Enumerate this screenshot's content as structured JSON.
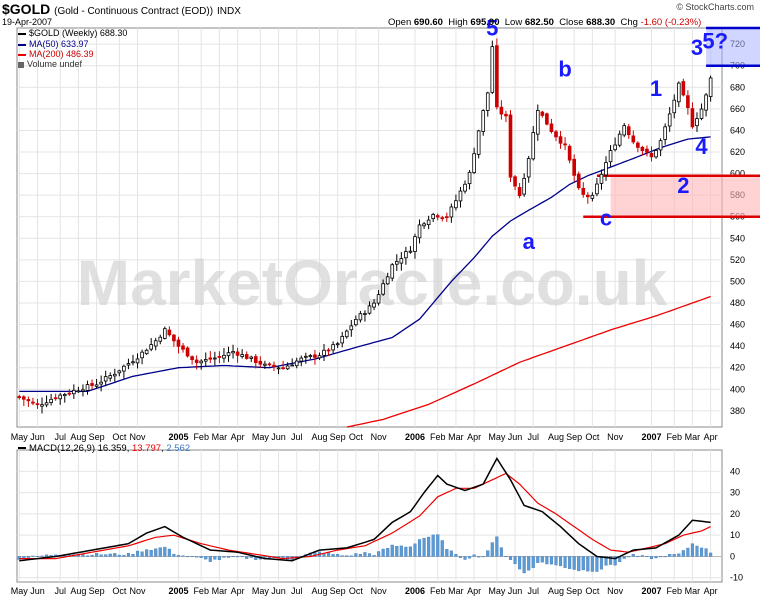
{
  "header": {
    "symbol": "$GOLD",
    "description": "(Gold - Continuous Contract (EOD))",
    "exchange": "INDX",
    "date": "19-Apr-2007",
    "open_label": "Open",
    "open": "690.60",
    "high_label": "High",
    "high": "695.90",
    "low_label": "Low",
    "low": "682.50",
    "close_label": "Close",
    "close": "688.30",
    "chg_label": "Chg",
    "chg": "-1.60 (-0.23%)",
    "credit": "© StockCharts.com"
  },
  "legend": {
    "price": "$GOLD (Weekly) 688.30",
    "ma50": "MA(50) 633.97",
    "ma200": "MA(200) 486.39",
    "volume": "Volume undef"
  },
  "macd_legend": {
    "name": "MACD(12,26,9)",
    "macd": "16.359",
    "signal": "13.797",
    "hist": "2.562"
  },
  "watermark": "MarketOracle.co.uk",
  "colors": {
    "up": "#000000",
    "down": "#cc0000",
    "ma50": "#00008b",
    "ma200": "#ee0000",
    "macd": "#000000",
    "signal": "#ee0000",
    "histogram": "#5b9bd5",
    "wave_labels": "#1a1aff",
    "support_zone": "#ffb6b6",
    "target_zone": "#aab4ff"
  },
  "chart_data": [
    {
      "type": "candlestick",
      "title": "$GOLD (Weekly)",
      "timeframe": "weekly",
      "ylim": [
        365,
        735
      ],
      "y_ticks": [
        380,
        400,
        420,
        440,
        460,
        480,
        500,
        520,
        540,
        560,
        580,
        600,
        620,
        640,
        660,
        680,
        700,
        720
      ],
      "x_tick_labels": [
        "May",
        "Jun",
        "Jul",
        "Aug",
        "Sep",
        "Oct",
        "Nov",
        "2005",
        "Feb",
        "Mar",
        "Apr",
        "May",
        "Jun",
        "Jul",
        "Aug",
        "Sep",
        "Oct",
        "Nov",
        "2006",
        "Feb",
        "Mar",
        "Apr",
        "May",
        "Jun",
        "Jul",
        "Aug",
        "Sep",
        "Oct",
        "Nov",
        "2007",
        "Feb",
        "Mar",
        "Apr"
      ],
      "x_tick_week_index": [
        0,
        4,
        9,
        13,
        17,
        22,
        26,
        35,
        40,
        44,
        48,
        53,
        57,
        61,
        66,
        70,
        74,
        79,
        87,
        92,
        96,
        100,
        105,
        109,
        113,
        118,
        122,
        126,
        131,
        139,
        144,
        148,
        152
      ],
      "close_anchors_by_week": [
        [
          0,
          393
        ],
        [
          4,
          385
        ],
        [
          8,
          393
        ],
        [
          13,
          400
        ],
        [
          17,
          405
        ],
        [
          21,
          415
        ],
        [
          26,
          430
        ],
        [
          30,
          445
        ],
        [
          32,
          455
        ],
        [
          35,
          440
        ],
        [
          39,
          425
        ],
        [
          44,
          430
        ],
        [
          47,
          435
        ],
        [
          51,
          428
        ],
        [
          54,
          422
        ],
        [
          58,
          420
        ],
        [
          62,
          428
        ],
        [
          66,
          432
        ],
        [
          70,
          442
        ],
        [
          74,
          465
        ],
        [
          76,
          472
        ],
        [
          78,
          480
        ],
        [
          82,
          515
        ],
        [
          86,
          530
        ],
        [
          88,
          552
        ],
        [
          91,
          562
        ],
        [
          94,
          560
        ],
        [
          96,
          575
        ],
        [
          99,
          600
        ],
        [
          101,
          640
        ],
        [
          103,
          675
        ],
        [
          104,
          718
        ],
        [
          105,
          660
        ],
        [
          107,
          652
        ],
        [
          108,
          598
        ],
        [
          110,
          580
        ],
        [
          112,
          615
        ],
        [
          114,
          660
        ],
        [
          117,
          640
        ],
        [
          120,
          625
        ],
        [
          123,
          585
        ],
        [
          124,
          580
        ],
        [
          126,
          578
        ],
        [
          128,
          600
        ],
        [
          130,
          620
        ],
        [
          133,
          645
        ],
        [
          135,
          630
        ],
        [
          137,
          622
        ],
        [
          139,
          615
        ],
        [
          141,
          630
        ],
        [
          143,
          655
        ],
        [
          145,
          682
        ],
        [
          147,
          660
        ],
        [
          148,
          645
        ],
        [
          150,
          660
        ],
        [
          151,
          672
        ],
        [
          152,
          688
        ]
      ],
      "ma50_anchors": [
        [
          0,
          398
        ],
        [
          15,
          398
        ],
        [
          25,
          412
        ],
        [
          35,
          420
        ],
        [
          45,
          422
        ],
        [
          55,
          420
        ],
        [
          65,
          428
        ],
        [
          75,
          440
        ],
        [
          82,
          448
        ],
        [
          88,
          465
        ],
        [
          95,
          500
        ],
        [
          100,
          522
        ],
        [
          104,
          542
        ],
        [
          108,
          556
        ],
        [
          112,
          566
        ],
        [
          117,
          578
        ],
        [
          121,
          590
        ],
        [
          125,
          598
        ],
        [
          130,
          606
        ],
        [
          135,
          614
        ],
        [
          141,
          624
        ],
        [
          147,
          632
        ],
        [
          152,
          634
        ]
      ],
      "ma200_anchors": [
        [
          72,
          365
        ],
        [
          80,
          372
        ],
        [
          90,
          386
        ],
        [
          100,
          405
        ],
        [
          110,
          425
        ],
        [
          120,
          440
        ],
        [
          130,
          455
        ],
        [
          140,
          468
        ],
        [
          152,
          486
        ]
      ],
      "annotations": [
        {
          "text": "5",
          "week": 104,
          "price": 728
        },
        {
          "text": "a",
          "week": 112,
          "price": 530
        },
        {
          "text": "b",
          "week": 120,
          "price": 690
        },
        {
          "text": "c",
          "week": 129,
          "price": 552
        },
        {
          "text": "1",
          "week": 140,
          "price": 672
        },
        {
          "text": "2",
          "week": 146,
          "price": 582
        },
        {
          "text": "3",
          "week": 149,
          "price": 710
        },
        {
          "text": "4",
          "week": 150,
          "price": 618
        },
        {
          "text": "5?",
          "week": 153,
          "price": 716
        }
      ],
      "support_zone": {
        "from_week": 130,
        "low": 560,
        "high": 598
      },
      "target_zone": {
        "from_week": 151,
        "low": 700,
        "high": 735
      }
    },
    {
      "type": "line",
      "title": "MACD(12,26,9)",
      "ylim": [
        -12,
        50
      ],
      "y_ticks": [
        -10,
        0,
        10,
        20,
        30,
        40
      ],
      "macd_anchors": [
        [
          0,
          -2
        ],
        [
          8,
          0
        ],
        [
          16,
          3
        ],
        [
          24,
          6
        ],
        [
          28,
          11
        ],
        [
          32,
          14
        ],
        [
          36,
          9
        ],
        [
          42,
          3
        ],
        [
          48,
          2
        ],
        [
          54,
          -1
        ],
        [
          60,
          -2
        ],
        [
          66,
          3
        ],
        [
          72,
          4
        ],
        [
          78,
          8
        ],
        [
          82,
          16
        ],
        [
          86,
          21
        ],
        [
          89,
          30
        ],
        [
          92,
          38
        ],
        [
          94,
          34
        ],
        [
          98,
          31
        ],
        [
          102,
          34
        ],
        [
          105,
          46
        ],
        [
          108,
          36
        ],
        [
          111,
          24
        ],
        [
          115,
          21
        ],
        [
          119,
          14
        ],
        [
          123,
          6
        ],
        [
          127,
          0
        ],
        [
          131,
          -1
        ],
        [
          135,
          3
        ],
        [
          140,
          4
        ],
        [
          145,
          10
        ],
        [
          148,
          17
        ],
        [
          152,
          16
        ]
      ],
      "signal_anchors": [
        [
          0,
          -1
        ],
        [
          8,
          -1
        ],
        [
          16,
          2
        ],
        [
          24,
          5
        ],
        [
          30,
          9
        ],
        [
          34,
          10
        ],
        [
          40,
          6
        ],
        [
          46,
          3
        ],
        [
          52,
          1
        ],
        [
          58,
          -1
        ],
        [
          64,
          0
        ],
        [
          70,
          3
        ],
        [
          76,
          5
        ],
        [
          82,
          11
        ],
        [
          88,
          19
        ],
        [
          92,
          28
        ],
        [
          96,
          32
        ],
        [
          100,
          32
        ],
        [
          104,
          36
        ],
        [
          107,
          39
        ],
        [
          110,
          34
        ],
        [
          114,
          25
        ],
        [
          118,
          20
        ],
        [
          122,
          14
        ],
        [
          126,
          8
        ],
        [
          130,
          3
        ],
        [
          134,
          2
        ],
        [
          138,
          4
        ],
        [
          142,
          6
        ],
        [
          146,
          10
        ],
        [
          150,
          12
        ],
        [
          152,
          14
        ]
      ]
    }
  ]
}
